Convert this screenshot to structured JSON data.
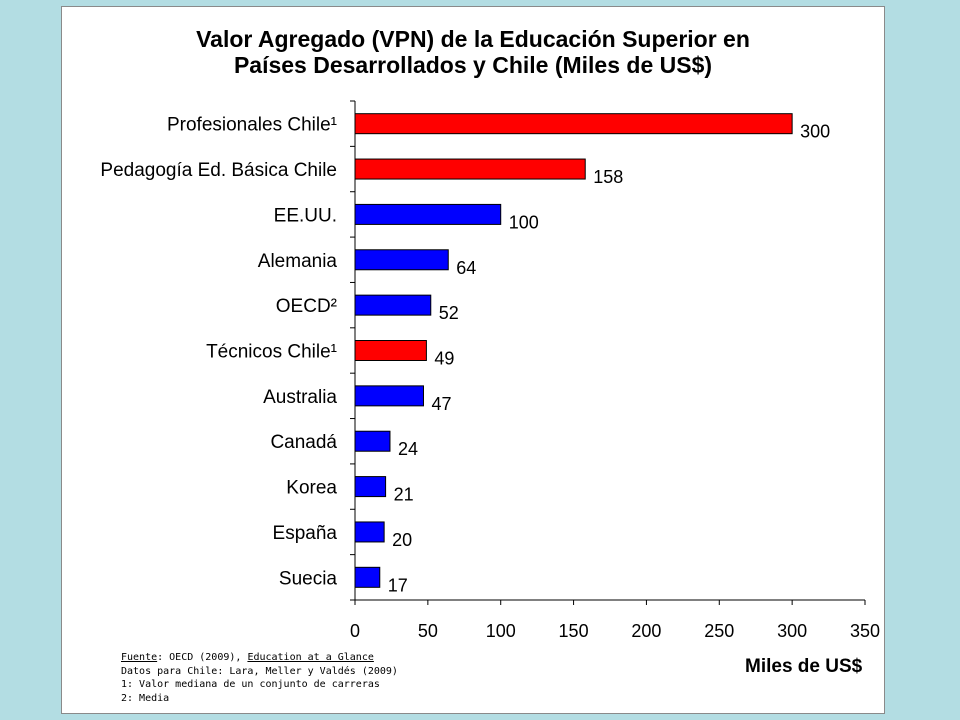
{
  "colors": {
    "chile": "#ff0000",
    "other": "#0000ff",
    "background": "#b3dde3"
  },
  "chart_data": {
    "type": "bar",
    "orientation": "horizontal",
    "title_line1": "Valor Agregado (VPN) de la Educación Superior en",
    "title_line2": "Países Desarrollados y Chile  (Miles de US$)",
    "xlabel": "Miles de US$",
    "xlim": [
      0,
      350
    ],
    "xticks": [
      "0",
      "50",
      "100",
      "150",
      "200",
      "250",
      "300",
      "350"
    ],
    "grid": false,
    "categories": [
      "Profesionales Chile¹",
      "Pedagogía Ed. Básica Chile",
      "EE.UU.",
      "Alemania",
      "OECD²",
      "Técnicos Chile¹",
      "Australia",
      "Canadá",
      "Korea",
      "España",
      "Suecia"
    ],
    "values": [
      300,
      158,
      100,
      64,
      52,
      49,
      47,
      24,
      21,
      20,
      17
    ],
    "bar_colors": [
      "chile",
      "chile",
      "other",
      "other",
      "other",
      "chile",
      "other",
      "other",
      "other",
      "other",
      "other"
    ]
  },
  "notes": {
    "source_label": "Fuente",
    "source_text": ": OECD (2009), ",
    "source_pub": "Education at a Glance",
    "line2": "Datos para Chile: Lara, Meller y Valdés (2009)",
    "line3": "1: Valor mediana de un conjunto de carreras",
    "line4": "2: Media"
  }
}
